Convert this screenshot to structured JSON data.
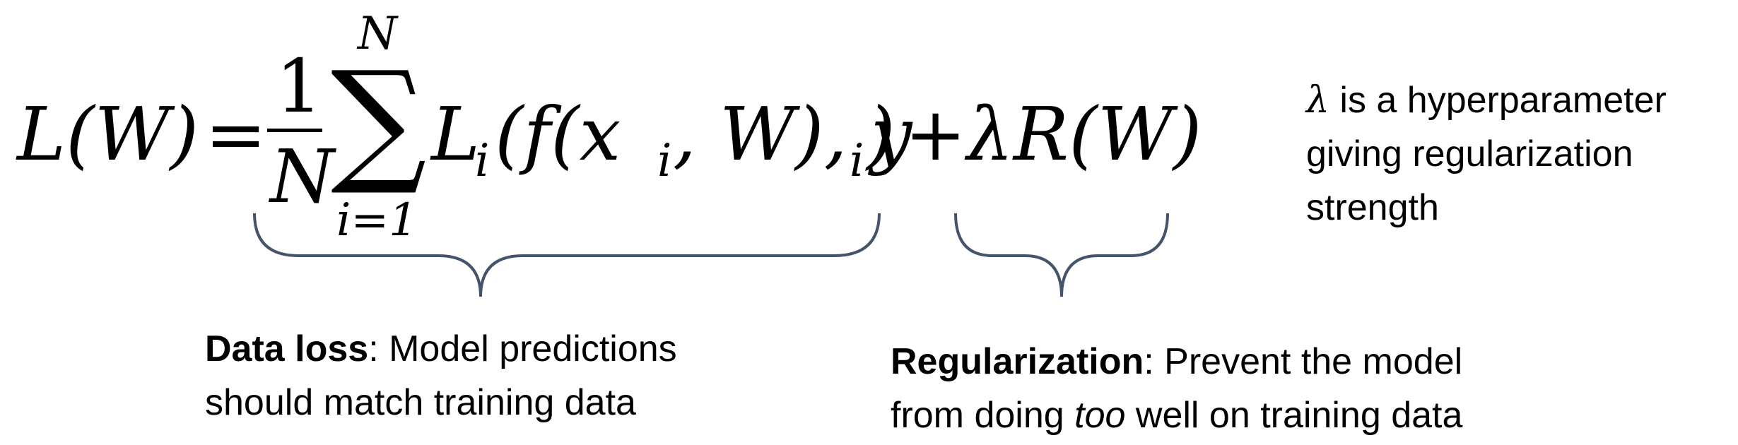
{
  "equation": {
    "lhs": "L(W)",
    "equals": "=",
    "frac_num": "1",
    "frac_den": "N",
    "sum_symbol": "∑",
    "sum_upper": "N",
    "sum_lower": "i=1",
    "term_main": "L",
    "term_sub": "i",
    "term_open": "(f(x",
    "term_x_sub": "i",
    "term_mid": ", W), y",
    "term_y_sub": "i",
    "term_close": ")",
    "plus": "+",
    "reg_term": "λR(W)"
  },
  "annotations": {
    "lambda_note": {
      "symbol": "λ",
      "line1_rest": " is a hyperparameter",
      "line2": "giving regularization",
      "line3": "strength"
    },
    "data_loss": {
      "bold": "Data loss",
      "rest1": ": Model predictions",
      "line2": "should match training data"
    },
    "regularization": {
      "bold": "Regularization",
      "rest1": ": Prevent the model",
      "line2_pre": "from doing ",
      "line2_em": "too",
      "line2_post": " well on training data"
    }
  },
  "colors": {
    "brace": "#44546A",
    "text": "#000000",
    "background": "#FFFFFF"
  }
}
